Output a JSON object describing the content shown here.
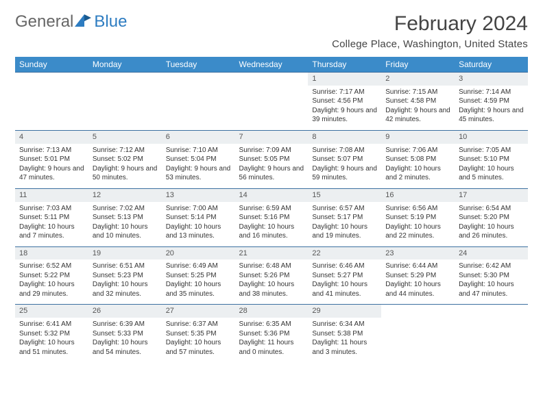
{
  "logo": {
    "part1": "General",
    "part2": "Blue"
  },
  "title": "February 2024",
  "location": "College Place, Washington, United States",
  "colors": {
    "header_bg": "#3b8bc9",
    "header_text": "#ffffff",
    "daynum_bg": "#eceff1",
    "border": "#3b6fa0",
    "text": "#333333",
    "title": "#444444"
  },
  "typography": {
    "title_fontsize": 30,
    "location_fontsize": 15,
    "dayheader_fontsize": 12,
    "cell_fontsize": 10
  },
  "day_headers": [
    "Sunday",
    "Monday",
    "Tuesday",
    "Wednesday",
    "Thursday",
    "Friday",
    "Saturday"
  ],
  "weeks": [
    [
      null,
      null,
      null,
      null,
      {
        "n": "1",
        "sr": "Sunrise: 7:17 AM",
        "ss": "Sunset: 4:56 PM",
        "dl": "Daylight: 9 hours and 39 minutes."
      },
      {
        "n": "2",
        "sr": "Sunrise: 7:15 AM",
        "ss": "Sunset: 4:58 PM",
        "dl": "Daylight: 9 hours and 42 minutes."
      },
      {
        "n": "3",
        "sr": "Sunrise: 7:14 AM",
        "ss": "Sunset: 4:59 PM",
        "dl": "Daylight: 9 hours and 45 minutes."
      }
    ],
    [
      {
        "n": "4",
        "sr": "Sunrise: 7:13 AM",
        "ss": "Sunset: 5:01 PM",
        "dl": "Daylight: 9 hours and 47 minutes."
      },
      {
        "n": "5",
        "sr": "Sunrise: 7:12 AM",
        "ss": "Sunset: 5:02 PM",
        "dl": "Daylight: 9 hours and 50 minutes."
      },
      {
        "n": "6",
        "sr": "Sunrise: 7:10 AM",
        "ss": "Sunset: 5:04 PM",
        "dl": "Daylight: 9 hours and 53 minutes."
      },
      {
        "n": "7",
        "sr": "Sunrise: 7:09 AM",
        "ss": "Sunset: 5:05 PM",
        "dl": "Daylight: 9 hours and 56 minutes."
      },
      {
        "n": "8",
        "sr": "Sunrise: 7:08 AM",
        "ss": "Sunset: 5:07 PM",
        "dl": "Daylight: 9 hours and 59 minutes."
      },
      {
        "n": "9",
        "sr": "Sunrise: 7:06 AM",
        "ss": "Sunset: 5:08 PM",
        "dl": "Daylight: 10 hours and 2 minutes."
      },
      {
        "n": "10",
        "sr": "Sunrise: 7:05 AM",
        "ss": "Sunset: 5:10 PM",
        "dl": "Daylight: 10 hours and 5 minutes."
      }
    ],
    [
      {
        "n": "11",
        "sr": "Sunrise: 7:03 AM",
        "ss": "Sunset: 5:11 PM",
        "dl": "Daylight: 10 hours and 7 minutes."
      },
      {
        "n": "12",
        "sr": "Sunrise: 7:02 AM",
        "ss": "Sunset: 5:13 PM",
        "dl": "Daylight: 10 hours and 10 minutes."
      },
      {
        "n": "13",
        "sr": "Sunrise: 7:00 AM",
        "ss": "Sunset: 5:14 PM",
        "dl": "Daylight: 10 hours and 13 minutes."
      },
      {
        "n": "14",
        "sr": "Sunrise: 6:59 AM",
        "ss": "Sunset: 5:16 PM",
        "dl": "Daylight: 10 hours and 16 minutes."
      },
      {
        "n": "15",
        "sr": "Sunrise: 6:57 AM",
        "ss": "Sunset: 5:17 PM",
        "dl": "Daylight: 10 hours and 19 minutes."
      },
      {
        "n": "16",
        "sr": "Sunrise: 6:56 AM",
        "ss": "Sunset: 5:19 PM",
        "dl": "Daylight: 10 hours and 22 minutes."
      },
      {
        "n": "17",
        "sr": "Sunrise: 6:54 AM",
        "ss": "Sunset: 5:20 PM",
        "dl": "Daylight: 10 hours and 26 minutes."
      }
    ],
    [
      {
        "n": "18",
        "sr": "Sunrise: 6:52 AM",
        "ss": "Sunset: 5:22 PM",
        "dl": "Daylight: 10 hours and 29 minutes."
      },
      {
        "n": "19",
        "sr": "Sunrise: 6:51 AM",
        "ss": "Sunset: 5:23 PM",
        "dl": "Daylight: 10 hours and 32 minutes."
      },
      {
        "n": "20",
        "sr": "Sunrise: 6:49 AM",
        "ss": "Sunset: 5:25 PM",
        "dl": "Daylight: 10 hours and 35 minutes."
      },
      {
        "n": "21",
        "sr": "Sunrise: 6:48 AM",
        "ss": "Sunset: 5:26 PM",
        "dl": "Daylight: 10 hours and 38 minutes."
      },
      {
        "n": "22",
        "sr": "Sunrise: 6:46 AM",
        "ss": "Sunset: 5:27 PM",
        "dl": "Daylight: 10 hours and 41 minutes."
      },
      {
        "n": "23",
        "sr": "Sunrise: 6:44 AM",
        "ss": "Sunset: 5:29 PM",
        "dl": "Daylight: 10 hours and 44 minutes."
      },
      {
        "n": "24",
        "sr": "Sunrise: 6:42 AM",
        "ss": "Sunset: 5:30 PM",
        "dl": "Daylight: 10 hours and 47 minutes."
      }
    ],
    [
      {
        "n": "25",
        "sr": "Sunrise: 6:41 AM",
        "ss": "Sunset: 5:32 PM",
        "dl": "Daylight: 10 hours and 51 minutes."
      },
      {
        "n": "26",
        "sr": "Sunrise: 6:39 AM",
        "ss": "Sunset: 5:33 PM",
        "dl": "Daylight: 10 hours and 54 minutes."
      },
      {
        "n": "27",
        "sr": "Sunrise: 6:37 AM",
        "ss": "Sunset: 5:35 PM",
        "dl": "Daylight: 10 hours and 57 minutes."
      },
      {
        "n": "28",
        "sr": "Sunrise: 6:35 AM",
        "ss": "Sunset: 5:36 PM",
        "dl": "Daylight: 11 hours and 0 minutes."
      },
      {
        "n": "29",
        "sr": "Sunrise: 6:34 AM",
        "ss": "Sunset: 5:38 PM",
        "dl": "Daylight: 11 hours and 3 minutes."
      },
      null,
      null
    ]
  ]
}
